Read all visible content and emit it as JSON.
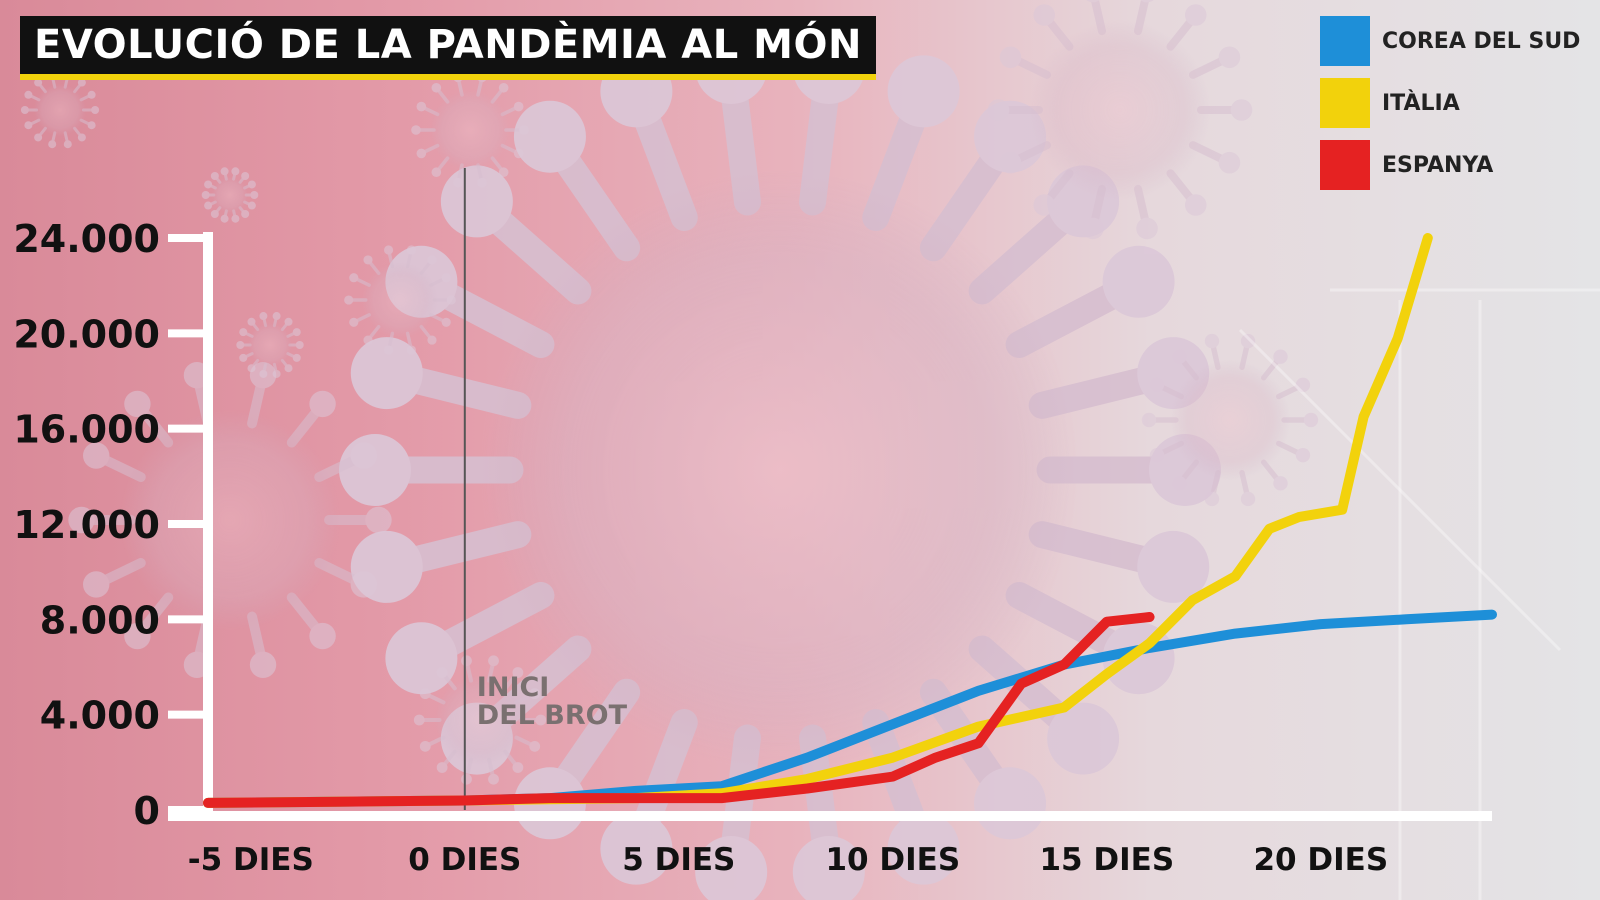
{
  "title": "EVOLUCIÓ DE LA PANDÈMIA AL MÓN",
  "colors": {
    "corea": "#1e8fd8",
    "italia": "#f2d20c",
    "espanya": "#e52222",
    "title_accent": "#f2d20c"
  },
  "chart_data": {
    "type": "line",
    "title": "EVOLUCIÓ DE LA PANDÈMIA AL MÓN",
    "xlabel": "",
    "ylabel": "",
    "xlim": [
      -6,
      24
    ],
    "ylim": [
      0,
      24000
    ],
    "yticks": [
      0,
      4000,
      8000,
      12000,
      16000,
      20000,
      24000
    ],
    "ytick_labels": [
      "0",
      "4.000",
      "8.000",
      "12.000",
      "16.000",
      "20.000",
      "24.000"
    ],
    "xticks": [
      -5,
      0,
      5,
      10,
      15,
      20
    ],
    "xtick_labels": [
      "-5 DIES",
      "0 DIES",
      "5 DIES",
      "10 DIES",
      "15 DIES",
      "20 DIES"
    ],
    "annotation": {
      "x": 0,
      "text": [
        "INICI",
        "DEL BROT"
      ]
    },
    "legend_position": "top-right",
    "series": [
      {
        "name": "COREA DEL SUD",
        "color": "#1e8fd8",
        "x": [
          -6,
          0,
          2,
          4,
          6,
          8,
          10,
          12,
          14,
          16,
          18,
          20,
          22,
          24
        ],
        "y": [
          300,
          400,
          500,
          800,
          1000,
          2200,
          3600,
          5000,
          6100,
          6800,
          7400,
          7800,
          8000,
          8200
        ]
      },
      {
        "name": "ITÀLIA",
        "color": "#f2d20c",
        "x": [
          -6,
          0,
          2,
          4,
          6,
          8,
          10,
          12,
          14,
          15,
          16,
          17,
          18,
          18.8,
          19.5,
          20.5,
          21,
          21.8,
          22.5
        ],
        "y": [
          300,
          400,
          450,
          500,
          700,
          1300,
          2200,
          3500,
          4300,
          5700,
          7000,
          8800,
          9800,
          11800,
          12300,
          12600,
          16500,
          19800,
          24000
        ]
      },
      {
        "name": "ESPANYA",
        "color": "#e52222",
        "x": [
          -6,
          -3,
          0,
          2,
          4,
          6,
          8,
          10,
          11,
          12,
          13,
          14,
          15,
          16
        ],
        "y": [
          300,
          350,
          400,
          500,
          500,
          500,
          900,
          1400,
          2200,
          2800,
          5300,
          6100,
          7900,
          8100
        ]
      }
    ]
  }
}
